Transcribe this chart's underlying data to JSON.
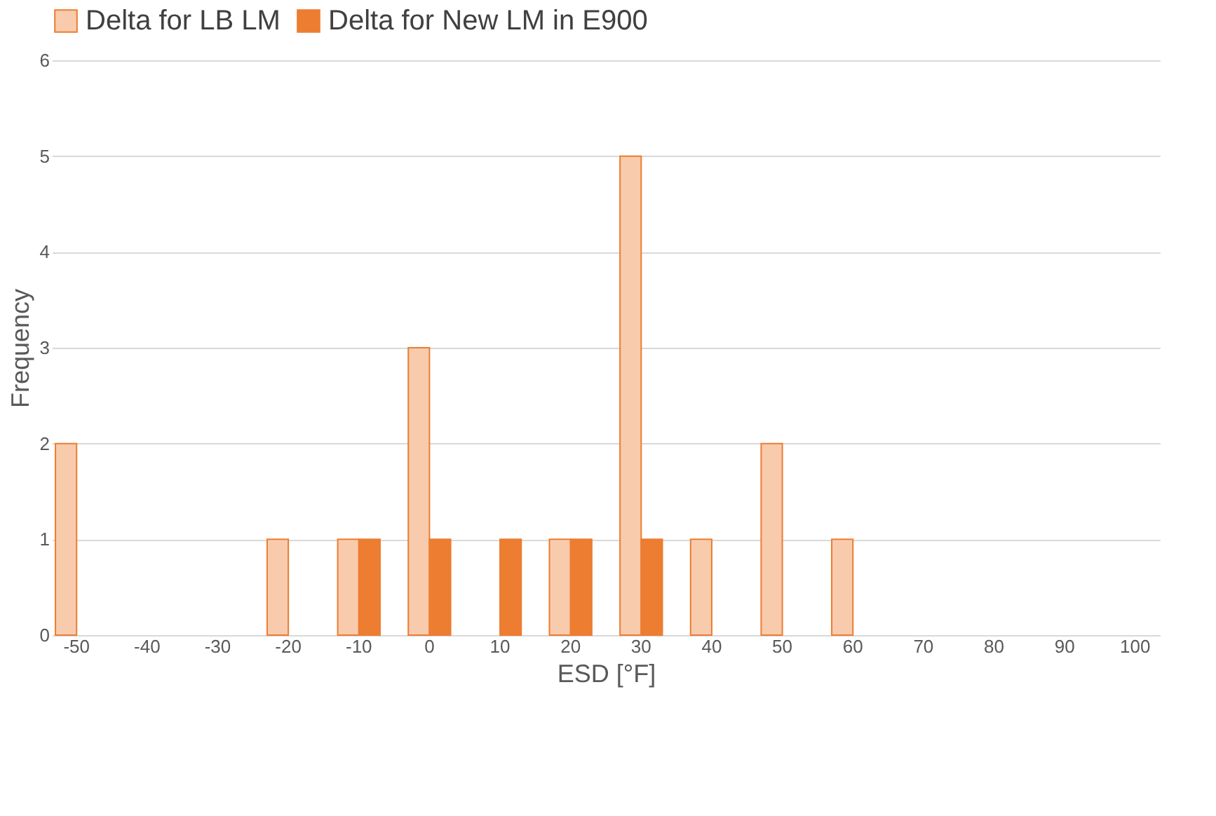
{
  "chart_data": {
    "type": "bar",
    "xlabel": "ESD [°F]",
    "ylabel": "Frequency",
    "categories": [
      "-50",
      "-40",
      "-30",
      "-20",
      "-10",
      "0",
      "10",
      "20",
      "30",
      "40",
      "50",
      "60",
      "70",
      "80",
      "90",
      "100"
    ],
    "series": [
      {
        "name": "Delta for LB LM",
        "color": "#f8cbad",
        "values": [
          2,
          0,
          0,
          1,
          1,
          3,
          0,
          1,
          5,
          1,
          2,
          1,
          0,
          0,
          0,
          0
        ]
      },
      {
        "name": "Delta for New LM in E900",
        "color": "#ed7d31",
        "values": [
          0,
          0,
          0,
          0,
          1,
          1,
          1,
          1,
          1,
          0,
          0,
          0,
          0,
          0,
          0,
          0
        ]
      }
    ],
    "ylim": [
      0,
      6
    ],
    "yticks": [
      0,
      1,
      2,
      3,
      4,
      5,
      6
    ],
    "grid": "y",
    "legend": "top"
  }
}
